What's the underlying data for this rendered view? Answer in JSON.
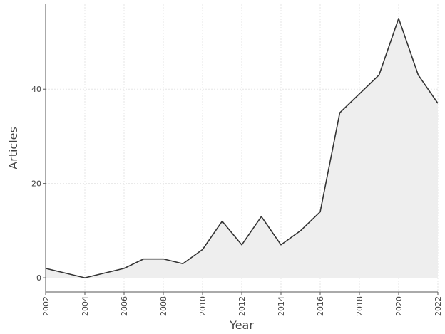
{
  "chart_data": {
    "type": "area",
    "title": "",
    "xlabel": "Year",
    "ylabel": "Articles",
    "x": [
      2002,
      2003,
      2004,
      2005,
      2006,
      2007,
      2008,
      2009,
      2010,
      2011,
      2012,
      2013,
      2014,
      2015,
      2016,
      2017,
      2018,
      2019,
      2020,
      2021,
      2022
    ],
    "series": [
      {
        "values": [
          2,
          1,
          0,
          1,
          2,
          4,
          4,
          3,
          6,
          12,
          7,
          13,
          7,
          10,
          14,
          35,
          39,
          43,
          55,
          43,
          37
        ]
      }
    ],
    "xlim": [
      2002,
      2022
    ],
    "ylim": [
      -3,
      58
    ],
    "x_ticks": [
      2002,
      2004,
      2006,
      2008,
      2010,
      2012,
      2014,
      2016,
      2018,
      2020,
      2022
    ],
    "x_tick_labels": [
      "2002",
      "2004",
      "2006",
      "2008",
      "2010",
      "2012",
      "2014",
      "2016",
      "2018",
      "2020",
      "2022"
    ],
    "y_ticks": [
      0,
      20,
      40
    ],
    "y_tick_labels": [
      "0",
      "20",
      "40"
    ],
    "grid": true,
    "legend": "none",
    "colors": {
      "line": "#333333",
      "fill": "#eeeeee",
      "grid": "#e6e6e6",
      "axis": "#555555"
    }
  }
}
